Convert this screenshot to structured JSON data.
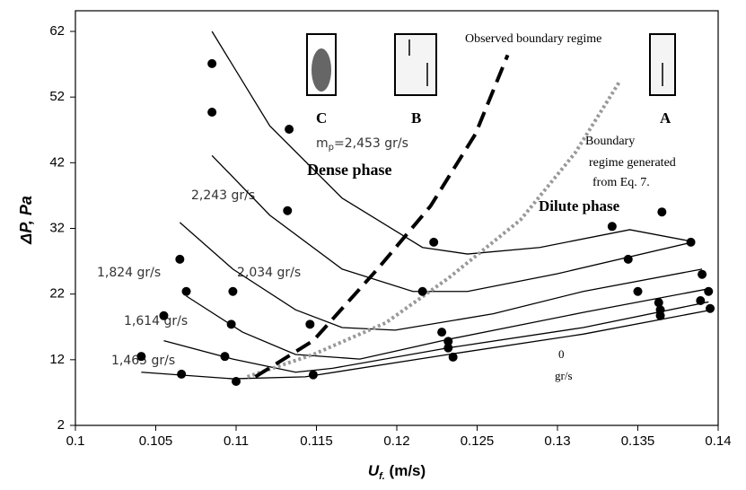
{
  "chart_data": {
    "type": "scatter",
    "xlabel": {
      "main": "U",
      "sub": "f.",
      "rest": " (m/s)"
    },
    "ylabel": "ΔP, Pa",
    "xlim": [
      0.1,
      0.14
    ],
    "ylim": [
      2,
      62
    ],
    "xticks": [
      0.1,
      0.105,
      0.11,
      0.115,
      0.12,
      0.125,
      0.13,
      0.135,
      0.14
    ],
    "yticks": [
      2,
      12,
      22,
      32,
      42,
      52,
      62
    ],
    "grid": false,
    "points": {
      "color": "#000000",
      "x": [
        0.1085,
        0.1085,
        0.1133,
        0.1132,
        0.1065,
        0.1069,
        0.1098,
        0.1055,
        0.1097,
        0.1146,
        0.1093,
        0.1041,
        0.1066,
        0.11,
        0.1148,
        0.1223,
        0.1216,
        0.1228,
        0.1232,
        0.1232,
        0.1235,
        0.1334,
        0.1365,
        0.1344,
        0.1383,
        0.139,
        0.135,
        0.1394,
        0.1363,
        0.1364,
        0.1364,
        0.1389,
        0.1395
      ],
      "y": [
        57.1,
        49.7,
        47.1,
        34.7,
        27.3,
        22.4,
        22.4,
        18.7,
        17.4,
        17.4,
        12.5,
        12.5,
        9.8,
        8.7,
        9.7,
        29.9,
        22.4,
        16.2,
        14.8,
        13.8,
        12.4,
        32.3,
        34.5,
        27.3,
        29.9,
        25.0,
        22.4,
        22.4,
        20.7,
        19.6,
        18.7,
        21.0,
        19.8
      ]
    },
    "curves": [
      {
        "color": "#000000",
        "x": [
          0.1085,
          0.1121,
          0.1166,
          0.1216,
          0.1244,
          0.1289,
          0.1345,
          0.1384
        ],
        "y": [
          62,
          47.6,
          36.6,
          29.1,
          28.1,
          29.1,
          31.8,
          30.0
        ]
      },
      {
        "color": "#000000",
        "x": [
          0.1085,
          0.1121,
          0.1166,
          0.121,
          0.1244,
          0.13,
          0.1384
        ],
        "y": [
          43.1,
          34.0,
          25.8,
          22.4,
          22.4,
          25.1,
          29.9
        ]
      },
      {
        "color": "#000000",
        "x": [
          0.1065,
          0.1098,
          0.1137,
          0.1166,
          0.1199,
          0.126,
          0.1316,
          0.139
        ],
        "y": [
          32.9,
          25.8,
          19.6,
          16.9,
          16.5,
          19.0,
          22.4,
          25.8
        ]
      },
      {
        "color": "#000000",
        "x": [
          0.1069,
          0.1104,
          0.1137,
          0.1177,
          0.1232,
          0.1316,
          0.1394
        ],
        "y": [
          21.7,
          16.2,
          12.8,
          12.1,
          15.1,
          19.2,
          22.8
        ]
      },
      {
        "color": "#000000",
        "x": [
          0.1055,
          0.1098,
          0.1137,
          0.116,
          0.1232,
          0.1316,
          0.1394
        ],
        "y": [
          14.9,
          12.1,
          10.1,
          10.7,
          13.8,
          16.9,
          20.8
        ]
      },
      {
        "color": "#000000",
        "x": [
          0.1041,
          0.1098,
          0.1143,
          0.1232,
          0.1316,
          0.1396
        ],
        "y": [
          10.1,
          9.1,
          9.4,
          12.8,
          15.9,
          19.6
        ]
      }
    ],
    "boundary_observed": {
      "color": "#000000",
      "x": [
        0.1112,
        0.1148,
        0.1188,
        0.1221,
        0.1249,
        0.1269
      ],
      "y": [
        9.4,
        14.9,
        25.8,
        35.4,
        46.4,
        58.4
      ]
    },
    "boundary_eq7": {
      "color": "#999999",
      "x": [
        0.1107,
        0.1148,
        0.1193,
        0.1232,
        0.1277,
        0.1311,
        0.1339
      ],
      "y": [
        9.4,
        12.8,
        17.6,
        24.4,
        33.3,
        43.5,
        54.5
      ]
    },
    "annotations": {
      "c": "C",
      "b": "B",
      "a": "A",
      "mp": {
        "main": "m",
        "sub": "p",
        "rest": "=2,453 gr/s"
      },
      "dense": "Dense phase",
      "observed": "Observed boundary regime",
      "eq7": [
        "Boundary",
        "regime generated",
        "from  Eq. 7."
      ],
      "dilute": "Dilute phase",
      "r2243": "2,243 gr/s",
      "r1824": "1,824 gr/s",
      "r2034": "2,034 gr/s",
      "r1614": "1,614 gr/s",
      "r1465": "1,465 gr/s",
      "zero": [
        "0",
        "gr/s"
      ]
    }
  }
}
